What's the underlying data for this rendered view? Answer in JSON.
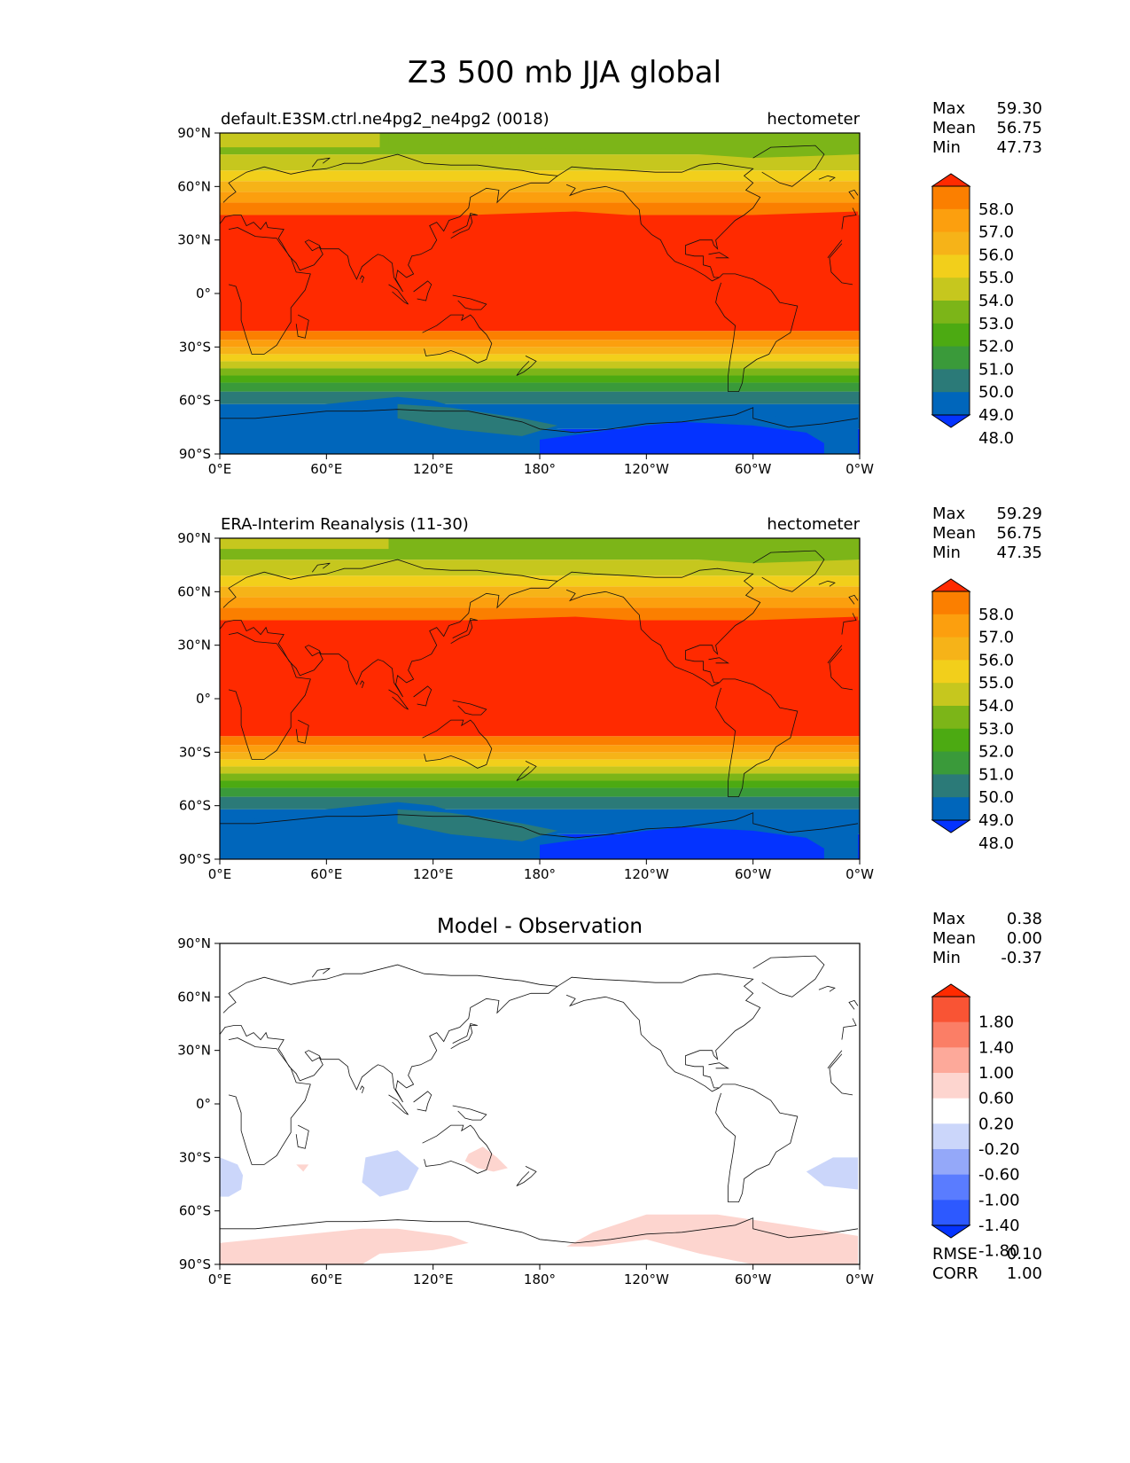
{
  "figure": {
    "suptitle": "Z3 500 mb JJA global"
  },
  "colors": {
    "field_levels": [
      "#0433ff",
      "#0066bb",
      "#2b7a78",
      "#3a9a3a",
      "#4caa12",
      "#7cb518",
      "#c6c71e",
      "#f2cf1b",
      "#f6b318",
      "#fc9f0e",
      "#fb7f00",
      "#fa5c00",
      "#ff2a00"
    ],
    "diff_levels": [
      "#0433ff",
      "#2d59ff",
      "#5a7cff",
      "#94a8f9",
      "#cbd6fa",
      "#ffffff",
      "#fdd5cf",
      "#fda99a",
      "#fb7e66",
      "#f95434",
      "#ff2a00"
    ],
    "coastline": "#111111"
  },
  "chart_data": [
    {
      "type": "heatmap",
      "title": "default.E3SM.ctrl.ne4pg2_ne4pg2 (0018)",
      "units": "hectometer",
      "stats": [
        {
          "label": "Max",
          "value": "59.30"
        },
        {
          "label": "Mean",
          "value": "56.75"
        },
        {
          "label": "Min",
          "value": "47.73"
        }
      ],
      "xticks": [
        "0°E",
        "60°E",
        "120°E",
        "180°",
        "120°W",
        "60°W",
        "0°W"
      ],
      "yticks": [
        "90°N",
        "60°N",
        "30°N",
        "0°",
        "30°S",
        "60°S",
        "90°S"
      ],
      "xlim": [
        0,
        360
      ],
      "ylim": [
        -90,
        90
      ],
      "colorbar": {
        "levels": [
          "58.0",
          "57.0",
          "56.0",
          "55.0",
          "54.0",
          "53.0",
          "52.0",
          "51.0",
          "50.0",
          "49.0",
          "48.0"
        ],
        "extend": "both"
      }
    },
    {
      "type": "heatmap",
      "title": "ERA-Interim Reanalysis (11-30)",
      "units": "hectometer",
      "stats": [
        {
          "label": "Max",
          "value": "59.29"
        },
        {
          "label": "Mean",
          "value": "56.75"
        },
        {
          "label": "Min",
          "value": "47.35"
        }
      ],
      "xticks": [
        "0°E",
        "60°E",
        "120°E",
        "180°",
        "120°W",
        "60°W",
        "0°W"
      ],
      "yticks": [
        "90°N",
        "60°N",
        "30°N",
        "0°",
        "30°S",
        "60°S",
        "90°S"
      ],
      "xlim": [
        0,
        360
      ],
      "ylim": [
        -90,
        90
      ],
      "colorbar": {
        "levels": [
          "58.0",
          "57.0",
          "56.0",
          "55.0",
          "54.0",
          "53.0",
          "52.0",
          "51.0",
          "50.0",
          "49.0",
          "48.0"
        ],
        "extend": "both"
      }
    },
    {
      "type": "heatmap",
      "title": "Model - Observation",
      "units": "",
      "stats": [
        {
          "label": "Max",
          "value": "0.38"
        },
        {
          "label": "Mean",
          "value": "0.00"
        },
        {
          "label": "Min",
          "value": "-0.37"
        }
      ],
      "extra_stats": [
        {
          "label": "RMSE",
          "value": "0.10"
        },
        {
          "label": "CORR",
          "value": "1.00"
        }
      ],
      "xticks": [
        "0°E",
        "60°E",
        "120°E",
        "180°",
        "120°W",
        "60°W",
        "0°W"
      ],
      "yticks": [
        "90°N",
        "60°N",
        "30°N",
        "0°",
        "30°S",
        "60°S",
        "90°S"
      ],
      "xlim": [
        0,
        360
      ],
      "ylim": [
        -90,
        90
      ],
      "colorbar": {
        "levels": [
          "1.80",
          "1.40",
          "1.00",
          "0.60",
          "0.20",
          "-0.20",
          "-0.60",
          "-1.00",
          "-1.40",
          "-1.80"
        ],
        "extend": "both"
      }
    }
  ]
}
